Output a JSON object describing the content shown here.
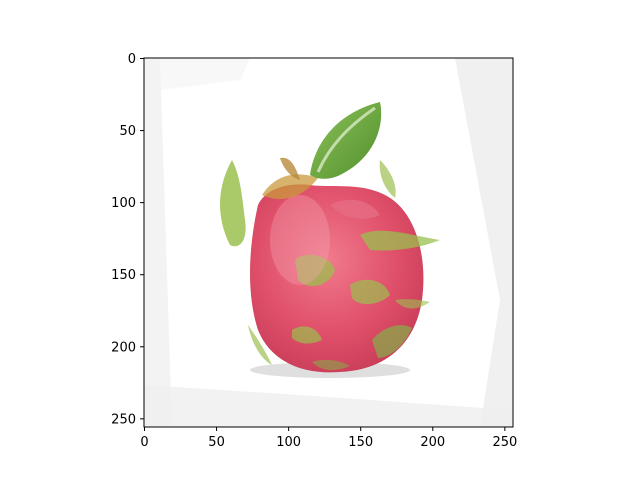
{
  "figure": {
    "x_ticks": [
      "0",
      "50",
      "100",
      "150",
      "200",
      "250"
    ],
    "y_ticks": [
      "0",
      "50",
      "100",
      "150",
      "200",
      "250"
    ],
    "x_tick_values": [
      0,
      50,
      100,
      150,
      200,
      250
    ],
    "y_tick_values": [
      0,
      50,
      100,
      150,
      200,
      250
    ],
    "image_extent": [
      0,
      256,
      0,
      256
    ]
  },
  "image": {
    "subject": "dragon fruit",
    "colors": {
      "fruit": "#e0506a",
      "fruit_dark": "#c83c58",
      "scale_green": "#9bbf4e",
      "leaf_green": "#6aa83a",
      "shadow": "#c9c9c9",
      "background": "#ffffff"
    }
  }
}
